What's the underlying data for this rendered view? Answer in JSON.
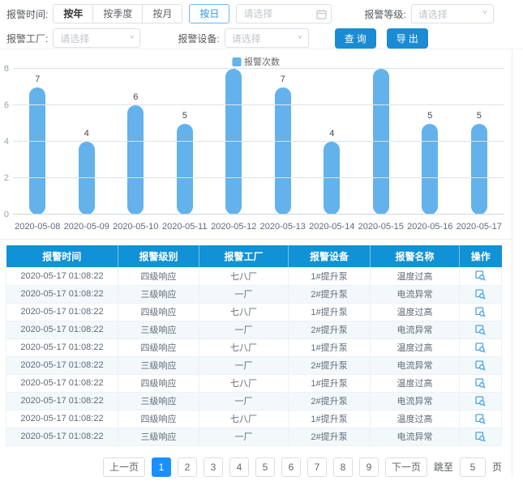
{
  "colors": {
    "primary_button": "#1b8bd3",
    "table_header": "#1191d6",
    "bar": "#63b2ec",
    "active_page": "#1890ff",
    "day_button_border": "#6cb6f2"
  },
  "filters": {
    "time_label": "报警时间:",
    "time_buttons": [
      "按年",
      "按季度",
      "按月"
    ],
    "day_button": "按日",
    "date_placeholder": "请选择",
    "level_label": "报警等级:",
    "level_placeholder": "请选择",
    "factory_label": "报警工厂:",
    "factory_placeholder": "请选择",
    "device_label": "报警设备:",
    "device_placeholder": "请选择",
    "query_button": "查询",
    "export_button": "导出"
  },
  "chart_data": {
    "type": "bar",
    "title": "",
    "legend": "报警次数",
    "legend_position": "top",
    "categories": [
      "2020-05-08",
      "2020-05-09",
      "2020-05-10",
      "2020-05-11",
      "2020-05-12",
      "2020-05-13",
      "2020-05-14",
      "2020-05-15",
      "2020-05-16",
      "2020-05-17"
    ],
    "values": [
      7,
      4,
      6,
      5,
      8,
      7,
      4,
      8,
      5,
      5
    ],
    "xlabel": "",
    "ylabel": "",
    "ylim": [
      0,
      8
    ],
    "yticks": [
      0,
      2,
      4,
      6,
      8
    ],
    "grid": true,
    "bar_color": "#63b2ec",
    "data_labels_hidden_at_max": true
  },
  "table": {
    "headers": [
      "报警时间",
      "报警级别",
      "报警工厂",
      "报警设备",
      "报警名称",
      "操作"
    ],
    "action_icon": "view-details",
    "rows": [
      [
        "2020-05-17 01:08:22",
        "四级响应",
        "七八厂",
        "1#提升泵",
        "温度过高"
      ],
      [
        "2020-05-17 01:08:22",
        "三级响应",
        "一厂",
        "2#提升泵",
        "电流异常"
      ],
      [
        "2020-05-17 01:08:22",
        "四级响应",
        "七八厂",
        "1#提升泵",
        "温度过高"
      ],
      [
        "2020-05-17 01:08:22",
        "三级响应",
        "一厂",
        "2#提升泵",
        "电流异常"
      ],
      [
        "2020-05-17 01:08:22",
        "四级响应",
        "七八厂",
        "1#提升泵",
        "温度过高"
      ],
      [
        "2020-05-17 01:08:22",
        "三级响应",
        "一厂",
        "2#提升泵",
        "电流异常"
      ],
      [
        "2020-05-17 01:08:22",
        "四级响应",
        "七八厂",
        "1#提升泵",
        "温度过高"
      ],
      [
        "2020-05-17 01:08:22",
        "三级响应",
        "一厂",
        "2#提升泵",
        "电流异常"
      ],
      [
        "2020-05-17 01:08:22",
        "四级响应",
        "七八厂",
        "1#提升泵",
        "温度过高"
      ],
      [
        "2020-05-17 01:08:22",
        "三级响应",
        "一厂",
        "2#提升泵",
        "电流异常"
      ]
    ]
  },
  "pagination": {
    "prev": "上一页",
    "pages": [
      "1",
      "2",
      "3",
      "4",
      "5",
      "6",
      "7",
      "8",
      "9"
    ],
    "active_page": "1",
    "next": "下一页",
    "jump_label": "跳至",
    "jump_value": "5",
    "page_suffix": "页"
  }
}
